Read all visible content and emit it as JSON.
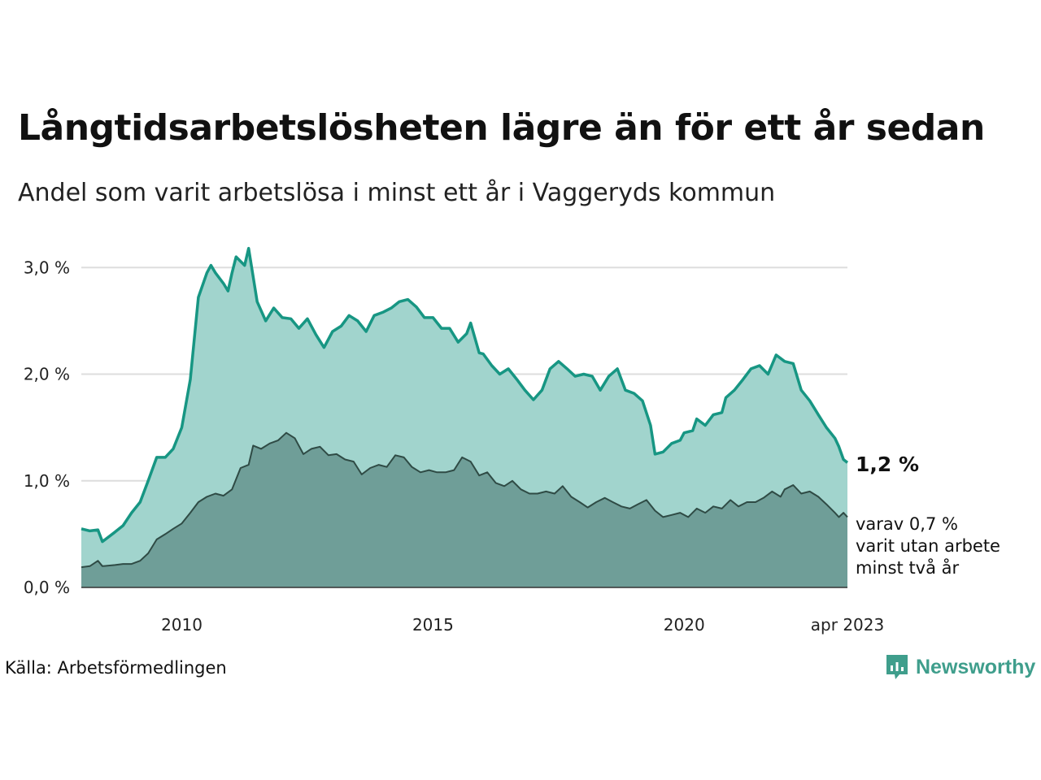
{
  "title": "Långtidsarbetslösheten lägre än för ett år sedan",
  "subtitle": "Andel som varit arbetslösa i minst ett år i Vaggeryds kommun",
  "source": "Källa: Arbetsförmedlingen",
  "brand": "Newsworthy",
  "colors": {
    "total_line": "#179683",
    "total_fill": "#a1d4cd",
    "sub_line": "#2f4b45",
    "sub_fill": "#6f9e98",
    "grid": "#dddddd",
    "brand": "#3f9e8c"
  },
  "chart_data": {
    "type": "area",
    "x_start": "2008-01",
    "x_end": "2023-04",
    "x_ticks": [
      {
        "x": 2010,
        "label": "2010"
      },
      {
        "x": 2015,
        "label": "2015"
      },
      {
        "x": 2020,
        "label": "2020"
      },
      {
        "x": 2023.25,
        "label": "apr 2023"
      }
    ],
    "y_ticks": [
      {
        "y": 0,
        "label": "0,0 %"
      },
      {
        "y": 1,
        "label": "1,0 %"
      },
      {
        "y": 2,
        "label": "2,0 %"
      },
      {
        "y": 3,
        "label": "3,0 %"
      }
    ],
    "ylim": [
      0,
      3.2
    ],
    "grid": true,
    "series": [
      {
        "key": "total",
        "end_label": "1,2 %",
        "points": [
          [
            2008.0,
            0.55
          ],
          [
            2008.17,
            0.53
          ],
          [
            2008.33,
            0.54
          ],
          [
            2008.42,
            0.43
          ],
          [
            2008.67,
            0.52
          ],
          [
            2008.83,
            0.58
          ],
          [
            2009.0,
            0.7
          ],
          [
            2009.17,
            0.8
          ],
          [
            2009.33,
            1.0
          ],
          [
            2009.5,
            1.22
          ],
          [
            2009.67,
            1.22
          ],
          [
            2009.83,
            1.3
          ],
          [
            2010.0,
            1.5
          ],
          [
            2010.17,
            1.95
          ],
          [
            2010.33,
            2.72
          ],
          [
            2010.5,
            2.95
          ],
          [
            2010.58,
            3.02
          ],
          [
            2010.67,
            2.95
          ],
          [
            2010.83,
            2.85
          ],
          [
            2010.92,
            2.78
          ],
          [
            2011.0,
            2.95
          ],
          [
            2011.08,
            3.1
          ],
          [
            2011.25,
            3.02
          ],
          [
            2011.33,
            3.18
          ],
          [
            2011.5,
            2.68
          ],
          [
            2011.67,
            2.5
          ],
          [
            2011.83,
            2.62
          ],
          [
            2012.0,
            2.53
          ],
          [
            2012.17,
            2.52
          ],
          [
            2012.33,
            2.43
          ],
          [
            2012.5,
            2.52
          ],
          [
            2012.67,
            2.37
          ],
          [
            2012.83,
            2.25
          ],
          [
            2013.0,
            2.4
          ],
          [
            2013.17,
            2.45
          ],
          [
            2013.33,
            2.55
          ],
          [
            2013.5,
            2.5
          ],
          [
            2013.67,
            2.4
          ],
          [
            2013.83,
            2.55
          ],
          [
            2014.0,
            2.58
          ],
          [
            2014.17,
            2.62
          ],
          [
            2014.33,
            2.68
          ],
          [
            2014.5,
            2.7
          ],
          [
            2014.67,
            2.63
          ],
          [
            2014.83,
            2.53
          ],
          [
            2015.0,
            2.53
          ],
          [
            2015.17,
            2.43
          ],
          [
            2015.33,
            2.43
          ],
          [
            2015.5,
            2.3
          ],
          [
            2015.67,
            2.38
          ],
          [
            2015.75,
            2.48
          ],
          [
            2015.92,
            2.2
          ],
          [
            2016.0,
            2.19
          ],
          [
            2016.17,
            2.08
          ],
          [
            2016.33,
            2.0
          ],
          [
            2016.5,
            2.05
          ],
          [
            2016.67,
            1.95
          ],
          [
            2016.83,
            1.85
          ],
          [
            2017.0,
            1.76
          ],
          [
            2017.17,
            1.85
          ],
          [
            2017.33,
            2.05
          ],
          [
            2017.5,
            2.12
          ],
          [
            2017.67,
            2.05
          ],
          [
            2017.83,
            1.98
          ],
          [
            2018.0,
            2.0
          ],
          [
            2018.17,
            1.98
          ],
          [
            2018.33,
            1.85
          ],
          [
            2018.5,
            1.98
          ],
          [
            2018.67,
            2.05
          ],
          [
            2018.83,
            1.85
          ],
          [
            2019.0,
            1.82
          ],
          [
            2019.17,
            1.75
          ],
          [
            2019.33,
            1.52
          ],
          [
            2019.42,
            1.25
          ],
          [
            2019.58,
            1.27
          ],
          [
            2019.75,
            1.35
          ],
          [
            2019.92,
            1.38
          ],
          [
            2020.0,
            1.45
          ],
          [
            2020.17,
            1.47
          ],
          [
            2020.25,
            1.58
          ],
          [
            2020.42,
            1.52
          ],
          [
            2020.58,
            1.62
          ],
          [
            2020.75,
            1.64
          ],
          [
            2020.83,
            1.78
          ],
          [
            2021.0,
            1.85
          ],
          [
            2021.17,
            1.95
          ],
          [
            2021.33,
            2.05
          ],
          [
            2021.5,
            2.08
          ],
          [
            2021.67,
            2.0
          ],
          [
            2021.83,
            2.18
          ],
          [
            2022.0,
            2.12
          ],
          [
            2022.17,
            2.1
          ],
          [
            2022.33,
            1.85
          ],
          [
            2022.5,
            1.75
          ],
          [
            2022.67,
            1.62
          ],
          [
            2022.83,
            1.5
          ],
          [
            2023.0,
            1.4
          ],
          [
            2023.08,
            1.32
          ],
          [
            2023.17,
            1.2
          ],
          [
            2023.25,
            1.17
          ]
        ]
      },
      {
        "key": "sub",
        "end_label_lines": [
          "varav 0,7 %",
          "varit utan arbete",
          "minst två år"
        ],
        "points": [
          [
            2008.0,
            0.19
          ],
          [
            2008.17,
            0.2
          ],
          [
            2008.33,
            0.25
          ],
          [
            2008.42,
            0.2
          ],
          [
            2008.67,
            0.21
          ],
          [
            2008.83,
            0.22
          ],
          [
            2009.0,
            0.22
          ],
          [
            2009.17,
            0.25
          ],
          [
            2009.33,
            0.32
          ],
          [
            2009.5,
            0.45
          ],
          [
            2009.67,
            0.5
          ],
          [
            2009.83,
            0.55
          ],
          [
            2010.0,
            0.6
          ],
          [
            2010.17,
            0.7
          ],
          [
            2010.33,
            0.8
          ],
          [
            2010.5,
            0.85
          ],
          [
            2010.67,
            0.88
          ],
          [
            2010.83,
            0.86
          ],
          [
            2011.0,
            0.92
          ],
          [
            2011.17,
            1.12
          ],
          [
            2011.33,
            1.15
          ],
          [
            2011.42,
            1.33
          ],
          [
            2011.58,
            1.3
          ],
          [
            2011.75,
            1.35
          ],
          [
            2011.92,
            1.38
          ],
          [
            2012.08,
            1.45
          ],
          [
            2012.25,
            1.4
          ],
          [
            2012.42,
            1.25
          ],
          [
            2012.58,
            1.3
          ],
          [
            2012.75,
            1.32
          ],
          [
            2012.92,
            1.24
          ],
          [
            2013.08,
            1.25
          ],
          [
            2013.25,
            1.2
          ],
          [
            2013.42,
            1.18
          ],
          [
            2013.58,
            1.06
          ],
          [
            2013.75,
            1.12
          ],
          [
            2013.92,
            1.15
          ],
          [
            2014.08,
            1.13
          ],
          [
            2014.25,
            1.24
          ],
          [
            2014.42,
            1.22
          ],
          [
            2014.58,
            1.13
          ],
          [
            2014.75,
            1.08
          ],
          [
            2014.92,
            1.1
          ],
          [
            2015.08,
            1.08
          ],
          [
            2015.25,
            1.08
          ],
          [
            2015.42,
            1.1
          ],
          [
            2015.58,
            1.22
          ],
          [
            2015.75,
            1.18
          ],
          [
            2015.92,
            1.05
          ],
          [
            2016.08,
            1.08
          ],
          [
            2016.25,
            0.98
          ],
          [
            2016.42,
            0.95
          ],
          [
            2016.58,
            1.0
          ],
          [
            2016.75,
            0.92
          ],
          [
            2016.92,
            0.88
          ],
          [
            2017.08,
            0.88
          ],
          [
            2017.25,
            0.9
          ],
          [
            2017.42,
            0.88
          ],
          [
            2017.58,
            0.95
          ],
          [
            2017.75,
            0.85
          ],
          [
            2017.92,
            0.8
          ],
          [
            2018.08,
            0.75
          ],
          [
            2018.25,
            0.8
          ],
          [
            2018.42,
            0.84
          ],
          [
            2018.58,
            0.8
          ],
          [
            2018.75,
            0.76
          ],
          [
            2018.92,
            0.74
          ],
          [
            2019.08,
            0.78
          ],
          [
            2019.25,
            0.82
          ],
          [
            2019.42,
            0.72
          ],
          [
            2019.58,
            0.66
          ],
          [
            2019.75,
            0.68
          ],
          [
            2019.92,
            0.7
          ],
          [
            2020.08,
            0.66
          ],
          [
            2020.25,
            0.74
          ],
          [
            2020.42,
            0.7
          ],
          [
            2020.58,
            0.76
          ],
          [
            2020.75,
            0.74
          ],
          [
            2020.92,
            0.82
          ],
          [
            2021.08,
            0.76
          ],
          [
            2021.25,
            0.8
          ],
          [
            2021.42,
            0.8
          ],
          [
            2021.58,
            0.84
          ],
          [
            2021.75,
            0.9
          ],
          [
            2021.92,
            0.85
          ],
          [
            2022.0,
            0.92
          ],
          [
            2022.17,
            0.96
          ],
          [
            2022.33,
            0.88
          ],
          [
            2022.5,
            0.9
          ],
          [
            2022.67,
            0.85
          ],
          [
            2022.83,
            0.78
          ],
          [
            2023.0,
            0.7
          ],
          [
            2023.08,
            0.66
          ],
          [
            2023.17,
            0.7
          ],
          [
            2023.25,
            0.66
          ]
        ]
      }
    ]
  }
}
